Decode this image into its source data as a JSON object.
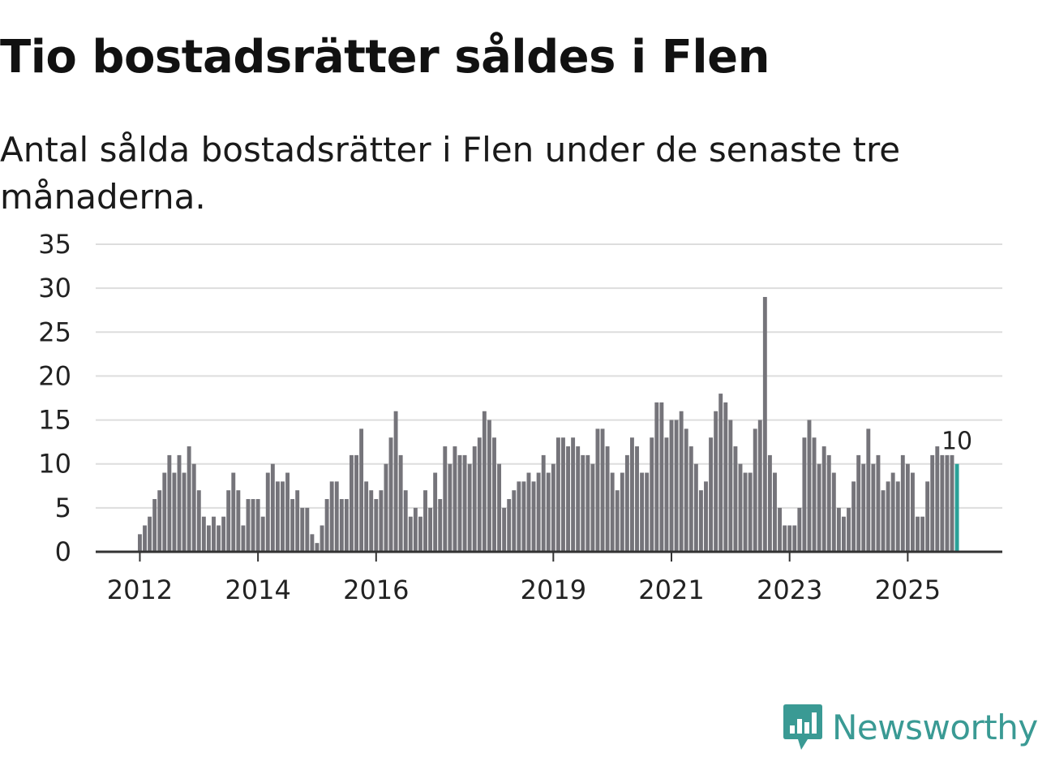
{
  "title": "Tio bostadsrätter såldes i Flen",
  "subtitle": "Antal sålda bostadsrätter i Flen under de senaste tre månaderna.",
  "brand": {
    "name": "Newsworthy",
    "icon": "newsworthy-logo-icon",
    "color": "#3a9a94"
  },
  "colors": {
    "bar": "#75747a",
    "highlight": "#2aa198",
    "grid": "#dddddd",
    "axis": "#333333"
  },
  "chart_data": {
    "type": "bar",
    "title": "Tio bostadsrätter såldes i Flen",
    "xlabel": "",
    "ylabel": "",
    "ylim": [
      0,
      35
    ],
    "yticks": [
      0,
      5,
      10,
      15,
      20,
      25,
      30,
      35
    ],
    "xticks": [
      {
        "label": "2012",
        "index": 0
      },
      {
        "label": "2014",
        "index": 24
      },
      {
        "label": "2016",
        "index": 48
      },
      {
        "label": "2019",
        "index": 84
      },
      {
        "label": "2021",
        "index": 108
      },
      {
        "label": "2023",
        "index": 132
      },
      {
        "label": "2025",
        "index": 156
      }
    ],
    "values": [
      2,
      3,
      4,
      6,
      7,
      9,
      11,
      9,
      11,
      9,
      12,
      10,
      7,
      4,
      3,
      4,
      3,
      4,
      7,
      9,
      7,
      3,
      6,
      6,
      6,
      4,
      9,
      10,
      8,
      8,
      9,
      6,
      7,
      5,
      5,
      2,
      1,
      3,
      6,
      8,
      8,
      6,
      6,
      11,
      11,
      14,
      8,
      7,
      6,
      7,
      10,
      13,
      16,
      11,
      7,
      4,
      5,
      4,
      7,
      5,
      9,
      6,
      12,
      10,
      12,
      11,
      11,
      10,
      12,
      13,
      16,
      15,
      13,
      10,
      5,
      6,
      7,
      8,
      8,
      9,
      8,
      9,
      11,
      9,
      10,
      13,
      13,
      12,
      13,
      12,
      11,
      11,
      10,
      14,
      14,
      12,
      9,
      7,
      9,
      11,
      13,
      12,
      9,
      9,
      13,
      17,
      17,
      13,
      15,
      15,
      16,
      14,
      12,
      10,
      7,
      8,
      13,
      16,
      18,
      17,
      15,
      12,
      10,
      9,
      9,
      14,
      15,
      29,
      11,
      9,
      5,
      3,
      3,
      3,
      5,
      13,
      15,
      13,
      10,
      12,
      11,
      9,
      5,
      4,
      5,
      8,
      11,
      10,
      14,
      10,
      11,
      7,
      8,
      9,
      8,
      11,
      10,
      9,
      4,
      4,
      8,
      11,
      12,
      11,
      11,
      11,
      10
    ],
    "highlight_index": 166,
    "annotation": {
      "label": "10",
      "index": 166
    }
  }
}
